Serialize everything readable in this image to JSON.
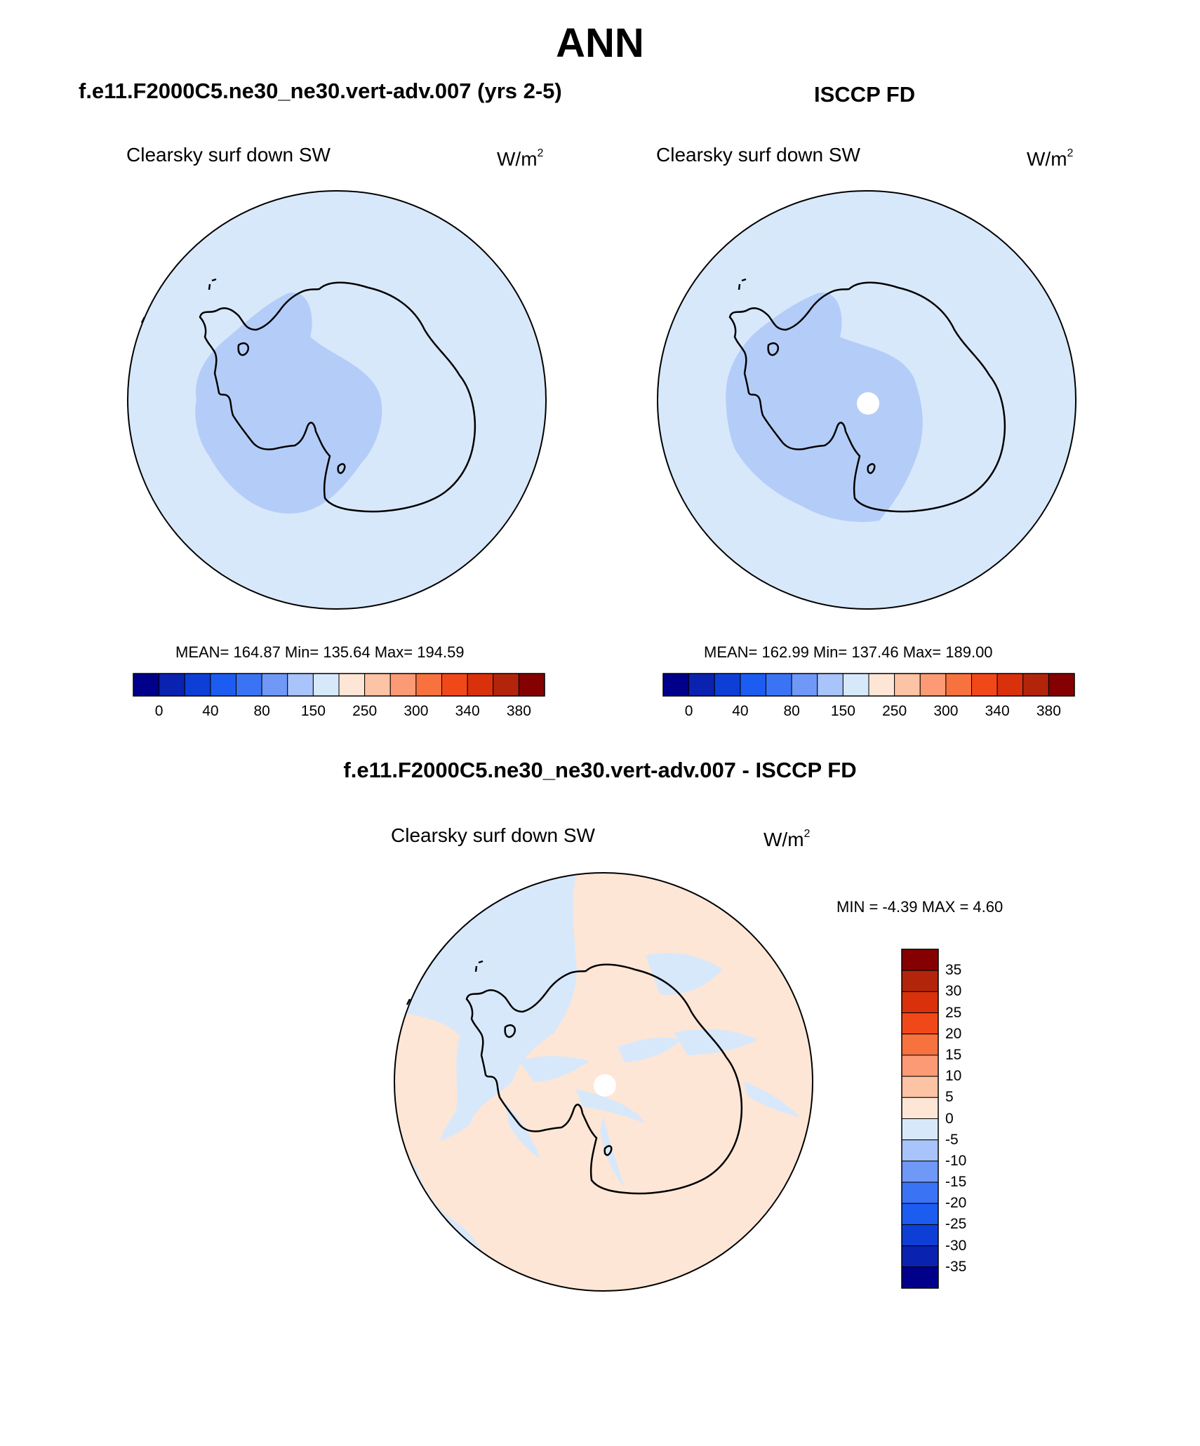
{
  "title": "ANN",
  "panels": [
    {
      "case_title": "f.e11.F2000C5.ne30_ne30.vert-adv.007 (yrs 2-5)",
      "variable": "Clearsky surf down SW",
      "units": "W/m",
      "units_exp": "2",
      "stats": "MEAN= 164.87  Min= 135.64  Max= 194.59"
    },
    {
      "case_title": "ISCCP FD",
      "variable": "Clearsky surf down SW",
      "units": "W/m",
      "units_exp": "2",
      "stats": "MEAN= 162.99  Min= 137.46  Max= 189.00"
    }
  ],
  "diff_panel": {
    "case_title": "f.e11.F2000C5.ne30_ne30.vert-adv.007 - ISCCP FD",
    "variable": "Clearsky surf down SW",
    "units": "W/m",
    "units_exp": "2",
    "stats": "MIN =  -4.39 MAX =   4.60"
  },
  "colorbar_main": {
    "colors": [
      "#00008a",
      "#0a22b0",
      "#0d3fd6",
      "#1c5cf0",
      "#3a74f5",
      "#6f98f7",
      "#a8c4fa",
      "#d8e8fb",
      "#fde6d6",
      "#fcc3a4",
      "#fb9a74",
      "#f8723f",
      "#f1481a",
      "#d8310c",
      "#b2250a",
      "#850000"
    ],
    "labels": [
      "0",
      "40",
      "80",
      "150",
      "250",
      "300",
      "340",
      "380"
    ]
  },
  "colorbar_diff": {
    "colors": [
      "#850000",
      "#b2250a",
      "#d8310c",
      "#f1481a",
      "#f8723f",
      "#fb9a74",
      "#fcc3a4",
      "#fde6d6",
      "#d8e8fb",
      "#a8c4fa",
      "#6f98f7",
      "#3a74f5",
      "#1c5cf0",
      "#0d3fd6",
      "#0a22b0",
      "#00008a"
    ],
    "labels": [
      "35",
      "30",
      "25",
      "20",
      "15",
      "10",
      "5",
      "0",
      "-5",
      "-10",
      "-15",
      "-20",
      "-25",
      "-30",
      "-35"
    ]
  },
  "map_colors": {
    "ocean": "#d8e8fb",
    "low_region": "#b4cdf8",
    "positive": "#fde6d6",
    "negative": "#d8e8fb",
    "missing": "#ffffff",
    "coast": "#000000"
  }
}
